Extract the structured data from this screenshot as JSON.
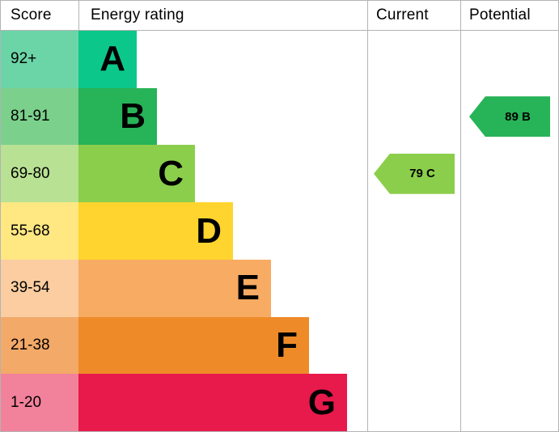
{
  "header": {
    "score": "Score",
    "energy_rating": "Energy rating",
    "current": "Current",
    "potential": "Potential"
  },
  "chart_data": {
    "type": "bar",
    "title": "Energy rating (EPC) band chart",
    "legend": [
      "Current",
      "Potential"
    ],
    "bands": [
      {
        "letter": "A",
        "score_range": "92+",
        "bar_color": "#0cc78a",
        "score_bg": "#6bd5a8"
      },
      {
        "letter": "B",
        "score_range": "81-91",
        "bar_color": "#27b357",
        "score_bg": "#7bd08c"
      },
      {
        "letter": "C",
        "score_range": "69-80",
        "bar_color": "#8bce4b",
        "score_bg": "#b9e194"
      },
      {
        "letter": "D",
        "score_range": "55-68",
        "bar_color": "#ffd42e",
        "score_bg": "#ffe782"
      },
      {
        "letter": "E",
        "score_range": "39-54",
        "bar_color": "#f8ab63",
        "score_bg": "#fbcda1"
      },
      {
        "letter": "F",
        "score_range": "21-38",
        "bar_color": "#ee8b28",
        "score_bg": "#f3a967"
      },
      {
        "letter": "G",
        "score_range": "1-20",
        "bar_color": "#e8194b",
        "score_bg": "#f2829b"
      }
    ],
    "current": {
      "value": 79,
      "band": "C",
      "label": "79 C",
      "color": "#8bce4b"
    },
    "potential": {
      "value": 89,
      "band": "B",
      "label": "89 B",
      "color": "#27b357"
    }
  },
  "colors": {
    "border": "#b1b4b6",
    "text": "#000000",
    "background": "#ffffff"
  }
}
